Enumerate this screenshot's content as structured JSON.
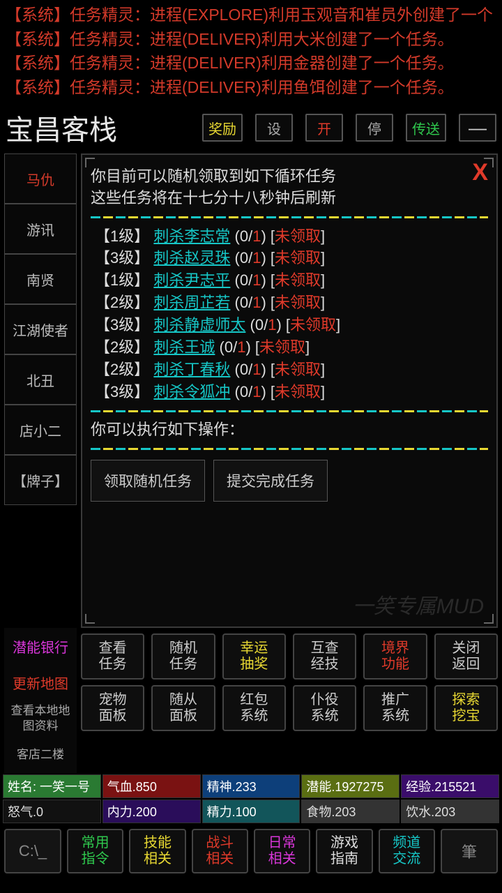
{
  "syslog": [
    {
      "tag": "【系统】",
      "body": "任务精灵：进程(EXPLORE)利用玉观音和崔员外创建了一个"
    },
    {
      "tag": "【系统】",
      "body": "任务精灵：进程(DELIVER)利用大米创建了一个任务。"
    },
    {
      "tag": "【系统】",
      "body": "任务精灵：进程(DELIVER)利用金器创建了一个任务。"
    },
    {
      "tag": "【系统】",
      "body": "任务精灵：进程(DELIVER)利用鱼饵创建了一个任务。"
    }
  ],
  "title": "宝昌客栈",
  "topbtns": [
    {
      "label": "奖励",
      "cls": "yellow wide"
    },
    {
      "label": "设",
      "cls": "gray"
    },
    {
      "label": "开",
      "cls": "red"
    },
    {
      "label": "停",
      "cls": "gray"
    },
    {
      "label": "传送",
      "cls": "green wide"
    },
    {
      "label": "—",
      "cls": "dash"
    }
  ],
  "sidebar": [
    {
      "label": "马仇",
      "cls": "active"
    },
    {
      "label": "游讯",
      "cls": ""
    },
    {
      "label": "南贤",
      "cls": ""
    },
    {
      "label": "江湖使者",
      "cls": ""
    },
    {
      "label": "北丑",
      "cls": ""
    },
    {
      "label": "店小二",
      "cls": ""
    },
    {
      "label": "【牌子】",
      "cls": ""
    }
  ],
  "sidebar2": [
    {
      "label": "潜能银行",
      "cls": "magenta"
    },
    {
      "label": "更新地图",
      "cls": "red2"
    },
    {
      "label": "查看本地地\n图资料",
      "cls": "small"
    },
    {
      "label": "客店二楼",
      "cls": "small"
    }
  ],
  "panel": {
    "close": "X",
    "intro1": "你目前可以随机领取到如下循环任务",
    "intro2": "这些任务将在十七分十八秒钟后刷新",
    "tasks": [
      {
        "lvl": "【1级】",
        "name": "刺杀李志常",
        "prog": "(0/1)",
        "stat": "未领取"
      },
      {
        "lvl": "【3级】",
        "name": "刺杀赵灵珠",
        "prog": "(0/1)",
        "stat": "未领取"
      },
      {
        "lvl": "【1级】",
        "name": "刺杀尹志平",
        "prog": "(0/1)",
        "stat": "未领取"
      },
      {
        "lvl": "【2级】",
        "name": "刺杀周芷若",
        "prog": "(0/1)",
        "stat": "未领取"
      },
      {
        "lvl": "【3级】",
        "name": "刺杀静虚师太",
        "prog": "(0/1)",
        "stat": "未领取"
      },
      {
        "lvl": "【2级】",
        "name": "刺杀王诚",
        "prog": "(0/1)",
        "stat": "未领取"
      },
      {
        "lvl": "【2级】",
        "name": "刺杀丁春秋",
        "prog": "(0/1)",
        "stat": "未领取"
      },
      {
        "lvl": "【3级】",
        "name": "刺杀令狐冲",
        "prog": "(0/1)",
        "stat": "未领取"
      }
    ],
    "actions_intro": "你可以执行如下操作：",
    "actions": [
      {
        "label": "领取随机任务"
      },
      {
        "label": "提交完成任务"
      }
    ],
    "watermark": "一笑专属MUD"
  },
  "grid": {
    "row1": [
      {
        "l1": "查看",
        "l2": "任务",
        "cls": ""
      },
      {
        "l1": "随机",
        "l2": "任务",
        "cls": ""
      },
      {
        "l1": "幸运",
        "l2": "抽奖",
        "cls": "yellow"
      },
      {
        "l1": "互查",
        "l2": "经技",
        "cls": ""
      },
      {
        "l1": "境界",
        "l2": "功能",
        "cls": "red"
      },
      {
        "l1": "关闭",
        "l2": "返回",
        "cls": ""
      }
    ],
    "row2": [
      {
        "l1": "宠物",
        "l2": "面板",
        "cls": ""
      },
      {
        "l1": "随从",
        "l2": "面板",
        "cls": ""
      },
      {
        "l1": "红包",
        "l2": "系统",
        "cls": ""
      },
      {
        "l1": "仆役",
        "l2": "系统",
        "cls": ""
      },
      {
        "l1": "推广",
        "l2": "系统",
        "cls": ""
      },
      {
        "l1": "探索",
        "l2": "挖宝",
        "cls": "yellow"
      }
    ]
  },
  "stats": {
    "r1": [
      {
        "label": "姓名: 一笑一号",
        "cls": "sc-name"
      },
      {
        "label": "气血.850",
        "cls": "sc-hp"
      },
      {
        "label": "精神.233",
        "cls": "sc-sp"
      },
      {
        "label": "潜能.1927275",
        "cls": "sc-pot"
      },
      {
        "label": "经验.215521",
        "cls": "sc-exp"
      }
    ],
    "r2": [
      {
        "label": "怒气.0",
        "cls": "sc-anger"
      },
      {
        "label": "内力.200",
        "cls": "sc-nei"
      },
      {
        "label": "精力.100",
        "cls": "sc-jing"
      },
      {
        "label": "食物.203",
        "cls": "sc-food"
      },
      {
        "label": "饮水.203",
        "cls": "sc-water"
      }
    ]
  },
  "bottombar": [
    {
      "icon": "C:\\_",
      "cls": "bic"
    },
    {
      "l1": "常用",
      "l2": "指令",
      "cls": "green"
    },
    {
      "l1": "技能",
      "l2": "相关",
      "cls": "yellow"
    },
    {
      "l1": "战斗",
      "l2": "相关",
      "cls": "red"
    },
    {
      "l1": "日常",
      "l2": "相关",
      "cls": "magenta"
    },
    {
      "l1": "游戏",
      "l2": "指南",
      "cls": "white"
    },
    {
      "l1": "频道",
      "l2": "交流",
      "cls": "cyan"
    },
    {
      "icon": "筆",
      "cls": "bic"
    }
  ]
}
